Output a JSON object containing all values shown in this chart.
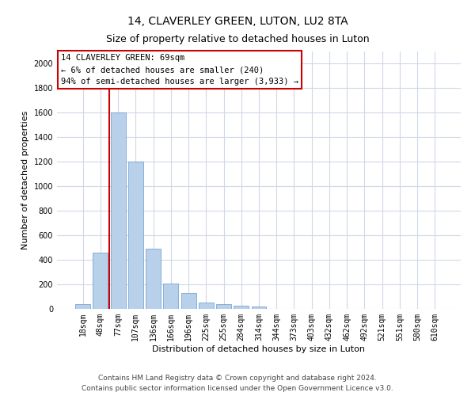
{
  "title": "14, CLAVERLEY GREEN, LUTON, LU2 8TA",
  "subtitle": "Size of property relative to detached houses in Luton",
  "xlabel": "Distribution of detached houses by size in Luton",
  "ylabel": "Number of detached properties",
  "categories": [
    "18sqm",
    "48sqm",
    "77sqm",
    "107sqm",
    "136sqm",
    "166sqm",
    "196sqm",
    "225sqm",
    "255sqm",
    "284sqm",
    "314sqm",
    "344sqm",
    "373sqm",
    "403sqm",
    "432sqm",
    "462sqm",
    "492sqm",
    "521sqm",
    "551sqm",
    "580sqm",
    "610sqm"
  ],
  "values": [
    40,
    460,
    1600,
    1200,
    490,
    210,
    130,
    50,
    40,
    25,
    18,
    0,
    0,
    0,
    0,
    0,
    0,
    0,
    0,
    0,
    0
  ],
  "bar_color": "#b8d0ea",
  "bar_edge_color": "#6699cc",
  "grid_color": "#d0d8e8",
  "annotation_line1": "14 CLAVERLEY GREEN: 69sqm",
  "annotation_line2": "← 6% of detached houses are smaller (240)",
  "annotation_line3": "94% of semi-detached houses are larger (3,933) →",
  "annotation_box_color": "#cc0000",
  "vline_color": "#cc0000",
  "vline_position": 1.5,
  "ylim": [
    0,
    2100
  ],
  "yticks": [
    0,
    200,
    400,
    600,
    800,
    1000,
    1200,
    1400,
    1600,
    1800,
    2000
  ],
  "footer_line1": "Contains HM Land Registry data © Crown copyright and database right 2024.",
  "footer_line2": "Contains public sector information licensed under the Open Government Licence v3.0.",
  "title_fontsize": 10,
  "subtitle_fontsize": 9,
  "axis_label_fontsize": 8,
  "tick_fontsize": 7,
  "annotation_fontsize": 7.5,
  "footer_fontsize": 6.5
}
